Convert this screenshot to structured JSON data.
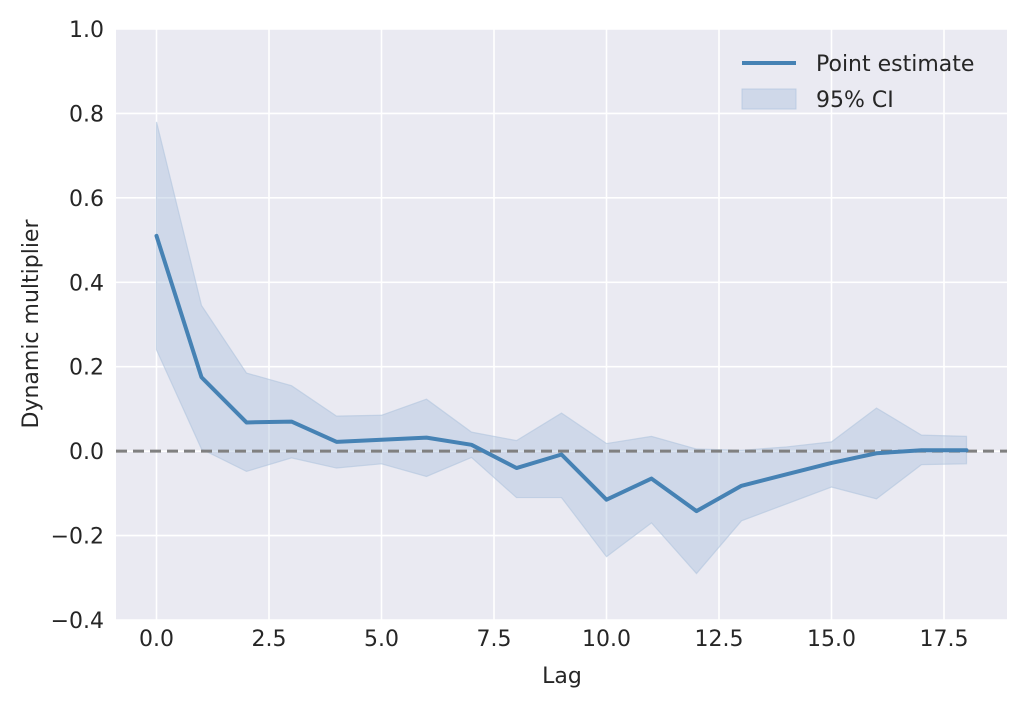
{
  "chart_data": {
    "type": "line",
    "title": "",
    "xlabel": "Lag",
    "ylabel": "Dynamic multiplier",
    "xlim": [
      -0.9,
      18.9
    ],
    "ylim": [
      -0.4,
      1.0
    ],
    "xticks": [
      0.0,
      2.5,
      5.0,
      7.5,
      10.0,
      12.5,
      15.0,
      17.5
    ],
    "xtick_labels": [
      "0.0",
      "2.5",
      "5.0",
      "7.5",
      "10.0",
      "12.5",
      "15.0",
      "17.5"
    ],
    "yticks": [
      -0.4,
      -0.2,
      0.0,
      0.2,
      0.4,
      0.6,
      0.8,
      1.0
    ],
    "ytick_labels": [
      "−0.4",
      "−0.2",
      "0.0",
      "0.2",
      "0.4",
      "0.6",
      "0.8",
      "1.0"
    ],
    "grid": true,
    "legend_position": "top-right",
    "reference_line": {
      "y": 0.0,
      "style": "dashed",
      "color": "#808080"
    },
    "x": [
      0,
      1,
      2,
      3,
      4,
      5,
      6,
      7,
      8,
      9,
      10,
      11,
      12,
      13,
      14,
      15,
      16,
      17,
      18
    ],
    "series": [
      {
        "name": "Point estimate",
        "color": "#4682b4",
        "values": [
          0.51,
          0.175,
          0.068,
          0.07,
          0.022,
          0.027,
          0.032,
          0.015,
          -0.04,
          -0.008,
          -0.115,
          -0.065,
          -0.142,
          -0.082,
          -0.055,
          -0.028,
          -0.005,
          0.002,
          0.002
        ]
      }
    ],
    "band": {
      "name": "95% CI",
      "color": "#b0c4de",
      "lower": [
        0.24,
        0.005,
        -0.048,
        -0.016,
        -0.04,
        -0.03,
        -0.06,
        -0.015,
        -0.11,
        -0.11,
        -0.25,
        -0.17,
        -0.29,
        -0.165,
        -0.125,
        -0.085,
        -0.113,
        -0.032,
        -0.03
      ],
      "upper": [
        0.78,
        0.345,
        0.185,
        0.155,
        0.083,
        0.085,
        0.123,
        0.045,
        0.025,
        0.09,
        0.018,
        0.035,
        0.005,
        0.002,
        0.01,
        0.022,
        0.102,
        0.038,
        0.035
      ]
    }
  }
}
